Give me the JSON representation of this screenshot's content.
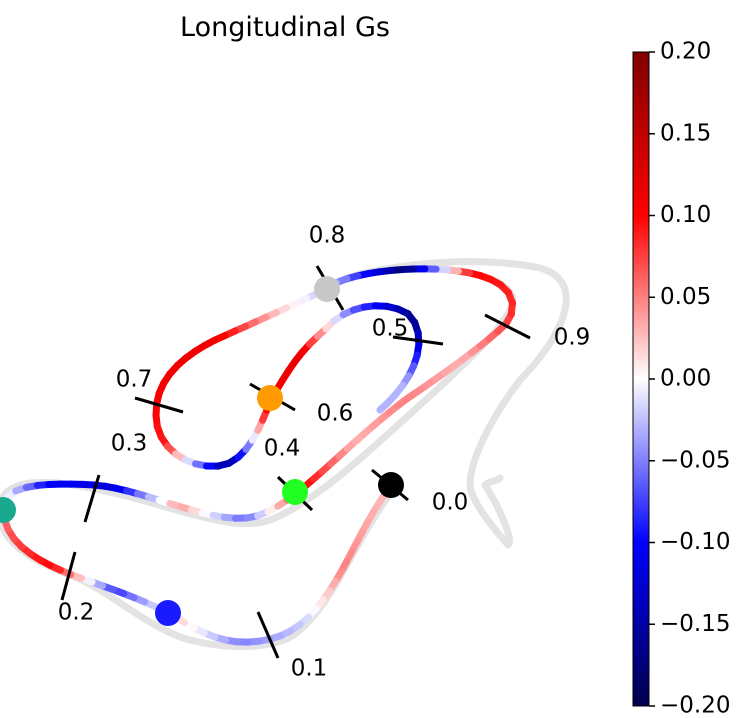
{
  "chart_data": {
    "type": "track_map",
    "title": "Longitudinal Gs",
    "colorbar": {
      "min": -0.2,
      "max": 0.2,
      "ticks": [
        "0.20",
        "0.15",
        "0.10",
        "0.05",
        "0.00",
        "−0.05",
        "−0.10",
        "−0.15",
        "−0.20"
      ],
      "colormap": "seismic"
    },
    "distance_markers": [
      "0.0",
      "0.1",
      "0.2",
      "0.3",
      "0.4",
      "0.5",
      "0.6",
      "0.7",
      "0.8",
      "0.9"
    ],
    "point_markers": [
      {
        "name": "black",
        "color": "#000000"
      },
      {
        "name": "blue",
        "color": "#1a1aff"
      },
      {
        "name": "teal",
        "color": "#1aa88f"
      },
      {
        "name": "green",
        "color": "#22ff22"
      },
      {
        "name": "orange",
        "color": "#ff9a00"
      },
      {
        "name": "gray",
        "color": "#c8c8c8"
      }
    ],
    "reference_line_color": "#e3e3e3"
  }
}
